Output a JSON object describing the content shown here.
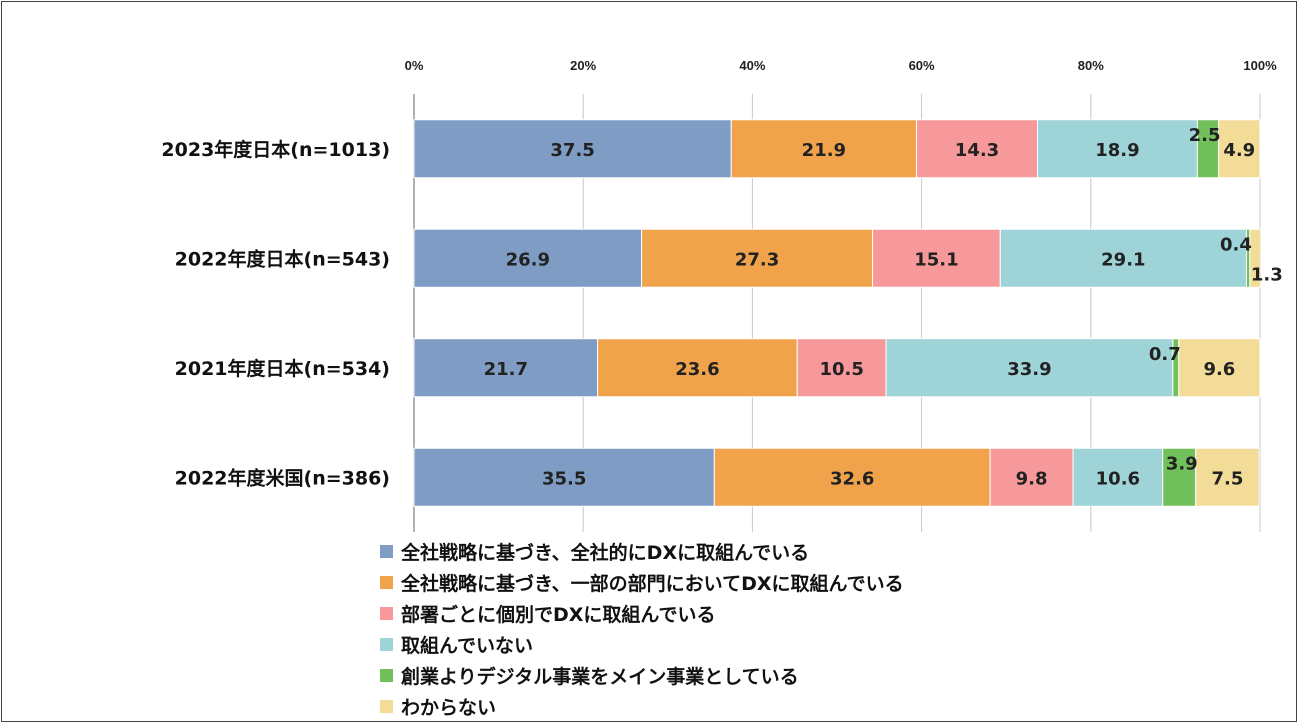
{
  "chart_data": {
    "type": "bar",
    "orientation": "horizontal",
    "stacked": true,
    "categories": [
      "2023年度日本(n=1013)",
      "2022年度日本(n=543)",
      "2021年度日本(n=534)",
      "2022年度米国(n=386)"
    ],
    "series": [
      {
        "name": "全社戦略に基づき、全社的にDXに取組んでいる",
        "color": "#7f9cc4",
        "values": [
          37.5,
          26.9,
          21.7,
          35.5
        ]
      },
      {
        "name": "全社戦略に基づき、一部の部門においてDXに取組んでいる",
        "color": "#f0a34b",
        "values": [
          21.9,
          27.3,
          23.6,
          32.6
        ]
      },
      {
        "name": "部署ごとに個別でDXに取組んでいる",
        "color": "#f7999a",
        "values": [
          14.3,
          15.1,
          10.5,
          9.8
        ]
      },
      {
        "name": "取組んでいない",
        "color": "#9ed3d8",
        "values": [
          18.9,
          29.1,
          33.9,
          10.6
        ]
      },
      {
        "name": "創業よりデジタル事業をメイン事業としている",
        "color": "#72c05b",
        "values": [
          2.5,
          0.4,
          0.7,
          3.9
        ]
      },
      {
        "name": "わからない",
        "color": "#f3dc98",
        "values": [
          4.9,
          1.3,
          9.6,
          7.5
        ]
      }
    ],
    "xticks": [
      "0%",
      "20%",
      "40%",
      "60%",
      "80%",
      "100%"
    ],
    "xlim": [
      0,
      100
    ],
    "grid": true,
    "legend_position": "bottom"
  }
}
